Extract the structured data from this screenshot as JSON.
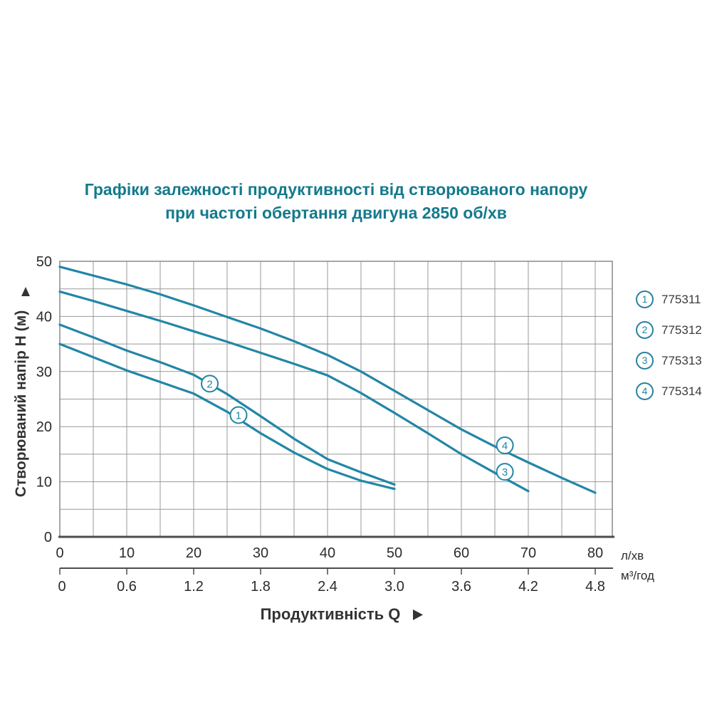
{
  "title": {
    "line1": "Графіки залежності продуктивності від створюваного напору",
    "line2": "при частоті обертання двигуна 2850 об/хв"
  },
  "colors": {
    "accent": "#147a8c",
    "curve": "#2286a6",
    "grid": "#999999",
    "frame": "#8a8a8a",
    "axis": "#4c4c4c",
    "tick_text": "#2b2b2b",
    "legend_text": "#3a3a3a"
  },
  "chart_data": {
    "type": "line",
    "title": "Графіки залежності продуктивності від створюваного напору при частоті обертання двигуна 2850 об/хв",
    "grid": {
      "visible": true,
      "x_step_l_min": 5,
      "y_step_m": 5
    },
    "legend_position": "right",
    "x_axis": {
      "label": "Продуктивність  Q",
      "primary_unit": "л/хв",
      "secondary_unit": "м³/год",
      "primary_ticks": [
        0,
        10,
        20,
        30,
        40,
        50,
        60,
        70,
        80
      ],
      "secondary_ticks": [
        "0",
        "0.6",
        "1.2",
        "1.8",
        "2.4",
        "3.0",
        "3.6",
        "4.2",
        "4.8"
      ],
      "range_l_min": [
        0,
        80
      ],
      "range_m3_h": [
        0,
        4.8
      ]
    },
    "y_axis": {
      "label": "Створюваний напір H (м)",
      "ticks": [
        0,
        10,
        20,
        30,
        40,
        50
      ],
      "range": [
        0,
        50
      ]
    },
    "series": [
      {
        "num": "1",
        "name": "775311",
        "label_at": [
          26.7,
          22.1
        ],
        "points": [
          [
            0,
            35
          ],
          [
            5,
            32.6
          ],
          [
            10,
            30.2
          ],
          [
            15,
            28.1
          ],
          [
            20,
            26
          ],
          [
            25,
            22.7
          ],
          [
            30,
            18.8
          ],
          [
            35,
            15.3
          ],
          [
            40,
            12.3
          ],
          [
            45,
            10.2
          ],
          [
            50,
            8.7
          ]
        ]
      },
      {
        "num": "2",
        "name": "775312",
        "label_at": [
          22.4,
          27.8
        ],
        "points": [
          [
            0,
            38.5
          ],
          [
            5,
            36.2
          ],
          [
            10,
            33.8
          ],
          [
            15,
            31.7
          ],
          [
            20,
            29.4
          ],
          [
            25,
            25.9
          ],
          [
            30,
            21.9
          ],
          [
            35,
            17.8
          ],
          [
            40,
            14.1
          ],
          [
            45,
            11.7
          ],
          [
            50,
            9.5
          ]
        ]
      },
      {
        "num": "3",
        "name": "775313",
        "label_at": [
          66.5,
          11.8
        ],
        "points": [
          [
            0,
            44.5
          ],
          [
            5,
            42.8
          ],
          [
            10,
            41
          ],
          [
            15,
            39.2
          ],
          [
            20,
            37.3
          ],
          [
            25,
            35.4
          ],
          [
            30,
            33.4
          ],
          [
            35,
            31.4
          ],
          [
            40,
            29.3
          ],
          [
            45,
            26.1
          ],
          [
            50,
            22.5
          ],
          [
            55,
            18.8
          ],
          [
            60,
            15
          ],
          [
            65,
            11.6
          ],
          [
            70,
            8.3
          ]
        ]
      },
      {
        "num": "4",
        "name": "775314",
        "label_at": [
          66.5,
          16.6
        ],
        "points": [
          [
            0,
            49
          ],
          [
            5,
            47.4
          ],
          [
            10,
            45.8
          ],
          [
            15,
            44
          ],
          [
            20,
            42
          ],
          [
            25,
            39.9
          ],
          [
            30,
            37.8
          ],
          [
            35,
            35.5
          ],
          [
            40,
            33
          ],
          [
            45,
            30
          ],
          [
            50,
            26.5
          ],
          [
            55,
            23
          ],
          [
            60,
            19.5
          ],
          [
            65,
            16.4
          ],
          [
            70,
            13.5
          ],
          [
            75,
            10.7
          ],
          [
            80,
            8
          ]
        ]
      }
    ]
  }
}
